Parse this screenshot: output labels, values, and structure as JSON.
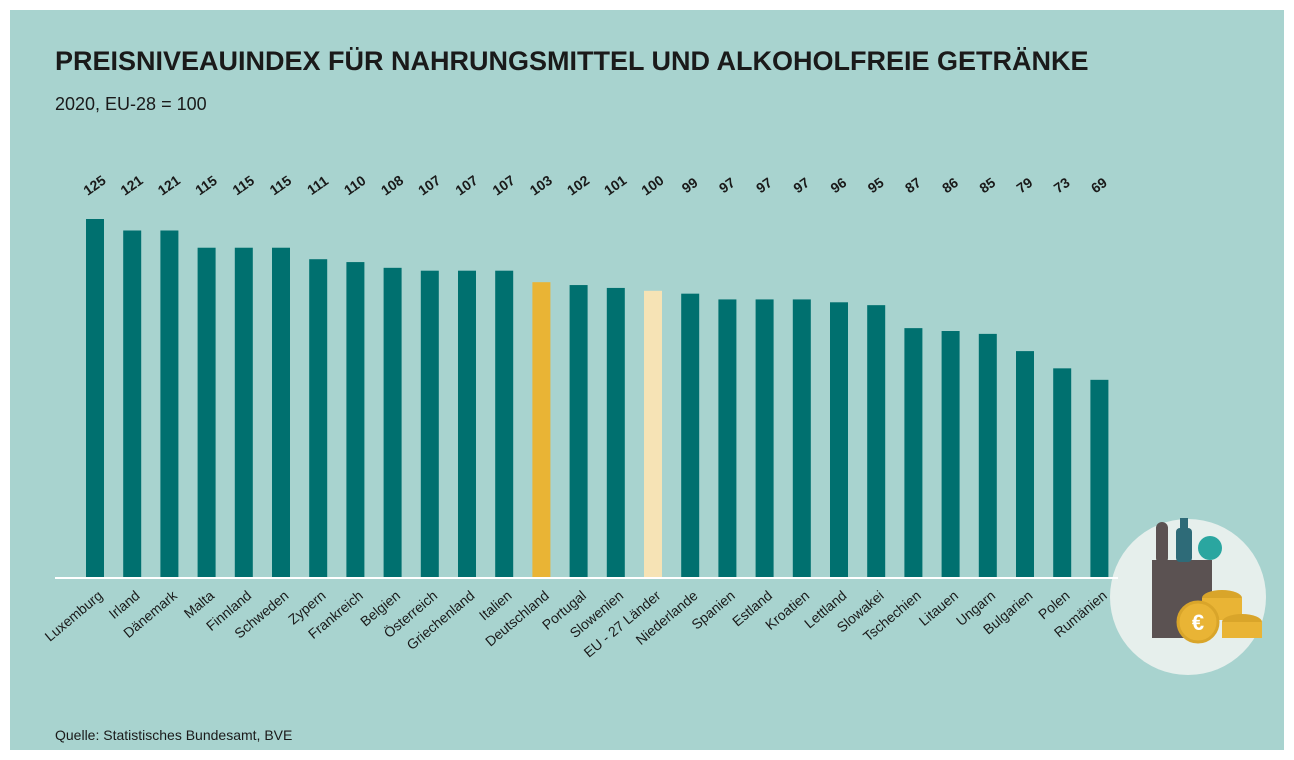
{
  "chart_data": {
    "type": "bar",
    "title": "PREISNIVEAUINDEX FÜR NAHRUNGSMITTEL UND ALKOHOLFREIE GETRÄNKE",
    "subtitle": "2020, EU-28 = 100",
    "source": "Quelle: Statistisches Bundesamt, BVE",
    "categories": [
      "Luxemburg",
      "Irland",
      "Dänemark",
      "Malta",
      "Finnland",
      "Schweden",
      "Zypern",
      "Frankreich",
      "Belgien",
      "Österreich",
      "Griechenland",
      "Italien",
      "Deutschland",
      "Portugal",
      "Slowenien",
      "EU - 27 Länder",
      "Niederlande",
      "Spanien",
      "Estland",
      "Kroatien",
      "Lettland",
      "Slowakei",
      "Tschechien",
      "Litauen",
      "Ungarn",
      "Bulgarien",
      "Polen",
      "Rumänien"
    ],
    "values": [
      125,
      121,
      121,
      115,
      115,
      115,
      111,
      110,
      108,
      107,
      107,
      107,
      103,
      102,
      101,
      100,
      99,
      97,
      97,
      97,
      96,
      95,
      87,
      86,
      85,
      79,
      73,
      69
    ],
    "colors": [
      "#00706f",
      "#00706f",
      "#00706f",
      "#00706f",
      "#00706f",
      "#00706f",
      "#00706f",
      "#00706f",
      "#00706f",
      "#00706f",
      "#00706f",
      "#00706f",
      "#e9b435",
      "#00706f",
      "#00706f",
      "#f6e3b5",
      "#00706f",
      "#00706f",
      "#00706f",
      "#00706f",
      "#00706f",
      "#00706f",
      "#00706f",
      "#00706f",
      "#00706f",
      "#00706f",
      "#00706f",
      "#00706f"
    ]
  }
}
